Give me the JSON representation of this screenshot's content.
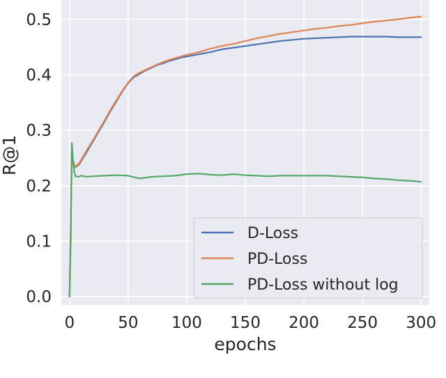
{
  "chart_data": {
    "type": "line",
    "title": "",
    "xlabel": "epochs",
    "ylabel": "R@1",
    "xlim": [
      -7,
      307
    ],
    "ylim": [
      -0.015,
      0.535
    ],
    "x_ticks": [
      0,
      50,
      100,
      150,
      200,
      250,
      300
    ],
    "x_tick_labels": [
      "0",
      "50",
      "100",
      "150",
      "200",
      "250",
      "300"
    ],
    "y_ticks": [
      0.0,
      0.1,
      0.2,
      0.3,
      0.4,
      0.5
    ],
    "y_tick_labels": [
      "0.0",
      "0.1",
      "0.2",
      "0.3",
      "0.4",
      "0.5"
    ],
    "grid": true,
    "background": "#eaeaf2",
    "legend_position": "lower right",
    "series": [
      {
        "name": "D-Loss",
        "color": "#4c72b0",
        "x": [
          0,
          1,
          2,
          3,
          5,
          8,
          10,
          15,
          20,
          25,
          30,
          35,
          40,
          45,
          50,
          55,
          60,
          65,
          70,
          75,
          80,
          85,
          90,
          95,
          100,
          110,
          120,
          130,
          140,
          150,
          160,
          170,
          180,
          190,
          200,
          210,
          220,
          230,
          240,
          250,
          260,
          270,
          280,
          290,
          300
        ],
        "y": [
          0.0,
          0.13,
          0.27,
          0.245,
          0.233,
          0.238,
          0.245,
          0.262,
          0.28,
          0.298,
          0.316,
          0.335,
          0.352,
          0.37,
          0.385,
          0.396,
          0.402,
          0.408,
          0.413,
          0.418,
          0.421,
          0.425,
          0.428,
          0.431,
          0.433,
          0.437,
          0.441,
          0.446,
          0.449,
          0.452,
          0.455,
          0.458,
          0.461,
          0.463,
          0.465,
          0.466,
          0.467,
          0.468,
          0.469,
          0.469,
          0.469,
          0.469,
          0.468,
          0.468,
          0.468
        ]
      },
      {
        "name": "PD-Loss",
        "color": "#dd8452",
        "x": [
          0,
          1,
          2,
          3,
          5,
          8,
          10,
          15,
          20,
          25,
          30,
          35,
          40,
          45,
          50,
          55,
          60,
          65,
          70,
          75,
          80,
          85,
          90,
          95,
          100,
          110,
          120,
          130,
          140,
          150,
          160,
          170,
          180,
          190,
          200,
          210,
          220,
          230,
          240,
          250,
          260,
          270,
          280,
          290,
          300
        ],
        "y": [
          0.0,
          0.13,
          0.265,
          0.243,
          0.234,
          0.24,
          0.247,
          0.265,
          0.282,
          0.3,
          0.318,
          0.337,
          0.354,
          0.371,
          0.386,
          0.398,
          0.404,
          0.409,
          0.414,
          0.419,
          0.423,
          0.427,
          0.43,
          0.433,
          0.436,
          0.441,
          0.447,
          0.452,
          0.456,
          0.461,
          0.466,
          0.47,
          0.474,
          0.477,
          0.48,
          0.483,
          0.485,
          0.488,
          0.49,
          0.493,
          0.496,
          0.498,
          0.5,
          0.503,
          0.505
        ]
      },
      {
        "name": "PD-Loss without log",
        "color": "#55a868",
        "x": [
          0,
          1,
          2,
          3,
          4,
          5,
          8,
          10,
          15,
          20,
          30,
          40,
          50,
          60,
          70,
          80,
          90,
          100,
          110,
          120,
          130,
          140,
          150,
          160,
          170,
          180,
          190,
          200,
          210,
          220,
          230,
          240,
          250,
          260,
          270,
          280,
          290,
          300
        ],
        "y": [
          0.0,
          0.1,
          0.277,
          0.245,
          0.225,
          0.217,
          0.216,
          0.218,
          0.216,
          0.217,
          0.218,
          0.219,
          0.218,
          0.213,
          0.216,
          0.217,
          0.218,
          0.221,
          0.222,
          0.22,
          0.219,
          0.221,
          0.219,
          0.218,
          0.217,
          0.218,
          0.218,
          0.218,
          0.218,
          0.218,
          0.217,
          0.216,
          0.215,
          0.213,
          0.212,
          0.21,
          0.209,
          0.207
        ]
      }
    ]
  }
}
